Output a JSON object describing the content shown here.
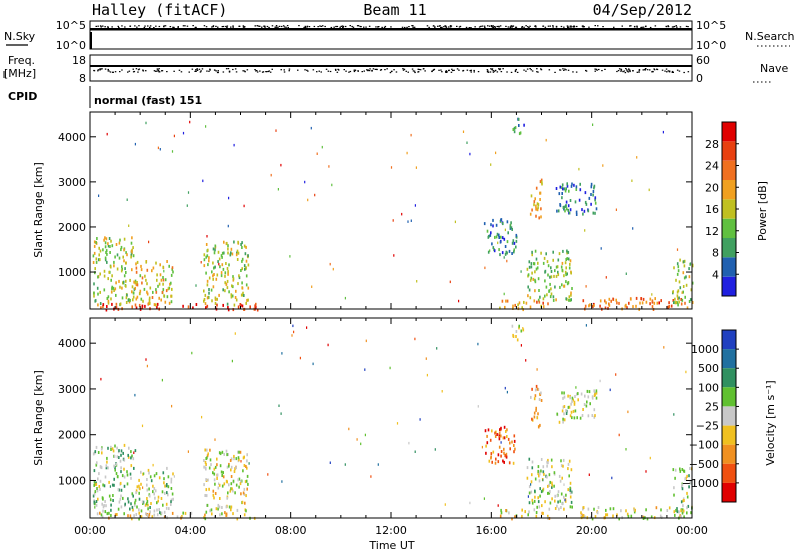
{
  "header": {
    "station": "Halley (fitACF)",
    "beam": "Beam 11",
    "date": "04/Sep/2012"
  },
  "top_panels": {
    "nsky_label": "N.Sky",
    "nsky_ticks": [
      "10^5",
      "10^0"
    ],
    "nsearch_label": "N.Search",
    "nsearch_ticks": [
      "10^5",
      "10^0"
    ],
    "freq_label": "Freq.",
    "freq_unit": "[MHz]",
    "freq_ticks": [
      "18",
      "8"
    ],
    "nave_label": "Nave",
    "nave_ticks": [
      "60",
      "0"
    ],
    "cpid_label": "CPID",
    "cpid_text": "normal (fast) 151"
  },
  "colors": {
    "power_scale": [
      "#2020e0",
      "#2060b0",
      "#40a060",
      "#60c040",
      "#c0c020",
      "#f0a020",
      "#f07020",
      "#e84010",
      "#e00000"
    ],
    "velocity_scale": [
      "#2040c0",
      "#2070a0",
      "#309060",
      "#60c030",
      "#c8c8c8",
      "#f0c020",
      "#f09020",
      "#f05010",
      "#e00000"
    ]
  },
  "chart_data": [
    {
      "type": "heatmap",
      "name": "power",
      "ylabel": "Slant Range [km]",
      "yticks": [
        1000,
        2000,
        3000,
        4000
      ],
      "ylim": [
        180,
        4550
      ],
      "xlim": [
        0,
        24
      ],
      "colorbar_label": "Power [dB]",
      "colorbar_ticks": [
        "4",
        "8",
        "12",
        "16",
        "20",
        "24",
        "28"
      ],
      "colorbar_range": [
        0,
        30
      ],
      "clusters": [
        {
          "t0": 0.1,
          "t1": 1.8,
          "r0": 300,
          "r1": 1800,
          "v": 14
        },
        {
          "t0": 1.8,
          "t1": 3.3,
          "r0": 300,
          "r1": 1300,
          "v": 16
        },
        {
          "t0": 4.5,
          "t1": 6.3,
          "r0": 300,
          "r1": 1700,
          "v": 14
        },
        {
          "t0": 0.2,
          "t1": 6.8,
          "r0": 190,
          "r1": 320,
          "v": 26
        },
        {
          "t0": 15.7,
          "t1": 17.0,
          "r0": 1400,
          "r1": 2200,
          "v": 6
        },
        {
          "t0": 17.5,
          "t1": 18.0,
          "r0": 2200,
          "r1": 3100,
          "v": 18
        },
        {
          "t0": 17.4,
          "t1": 19.2,
          "r0": 400,
          "r1": 1500,
          "v": 12
        },
        {
          "t0": 16.8,
          "t1": 17.3,
          "r0": 4100,
          "r1": 4450,
          "v": 7
        },
        {
          "t0": 18.5,
          "t1": 20.2,
          "r0": 2300,
          "r1": 3000,
          "v": 6
        },
        {
          "t0": 16.3,
          "t1": 18.3,
          "r0": 190,
          "r1": 400,
          "v": 20
        },
        {
          "t0": 19.5,
          "t1": 23.8,
          "r0": 190,
          "r1": 450,
          "v": 22
        },
        {
          "t0": 23.2,
          "t1": 24.0,
          "r0": 300,
          "r1": 1300,
          "v": 12
        }
      ]
    },
    {
      "type": "heatmap",
      "name": "velocity",
      "ylabel": "Slant Range [km]",
      "yticks": [
        1000,
        2000,
        3000,
        4000
      ],
      "ylim": [
        180,
        4550
      ],
      "xlim": [
        0,
        24
      ],
      "xlabel": "Time UT",
      "xticks": [
        "00:00",
        "04:00",
        "08:00",
        "12:00",
        "16:00",
        "20:00",
        "00:00"
      ],
      "colorbar_label": "Velocity [m s⁻¹]",
      "colorbar_ticks": [
        "1000",
        "500",
        "100",
        "25",
        "−25",
        "−100",
        "−500",
        "−1000"
      ],
      "colorbar_range": [
        -1200,
        1200
      ],
      "clusters": [
        {
          "t0": 0.1,
          "t1": 1.8,
          "r0": 300,
          "r1": 1800,
          "v": 200
        },
        {
          "t0": 1.8,
          "t1": 3.3,
          "r0": 300,
          "r1": 1300,
          "v": 100
        },
        {
          "t0": 4.5,
          "t1": 6.3,
          "r0": 300,
          "r1": 1700,
          "v": -60
        },
        {
          "t0": 0.2,
          "t1": 6.8,
          "r0": 190,
          "r1": 320,
          "v": -150
        },
        {
          "t0": 15.7,
          "t1": 17.0,
          "r0": 1400,
          "r1": 2200,
          "v": -700
        },
        {
          "t0": 17.5,
          "t1": 18.0,
          "r0": 2200,
          "r1": 3100,
          "v": -300
        },
        {
          "t0": 17.4,
          "t1": 19.2,
          "r0": 400,
          "r1": 1500,
          "v": 80
        },
        {
          "t0": 16.8,
          "t1": 17.3,
          "r0": 4100,
          "r1": 4450,
          "v": -200
        },
        {
          "t0": 18.5,
          "t1": 20.2,
          "r0": 2300,
          "r1": 3000,
          "v": 20
        },
        {
          "t0": 16.3,
          "t1": 18.3,
          "r0": 190,
          "r1": 400,
          "v": -100
        },
        {
          "t0": 19.5,
          "t1": 23.8,
          "r0": 190,
          "r1": 450,
          "v": -60
        },
        {
          "t0": 23.2,
          "t1": 24.0,
          "r0": 300,
          "r1": 1300,
          "v": 100
        }
      ]
    }
  ]
}
